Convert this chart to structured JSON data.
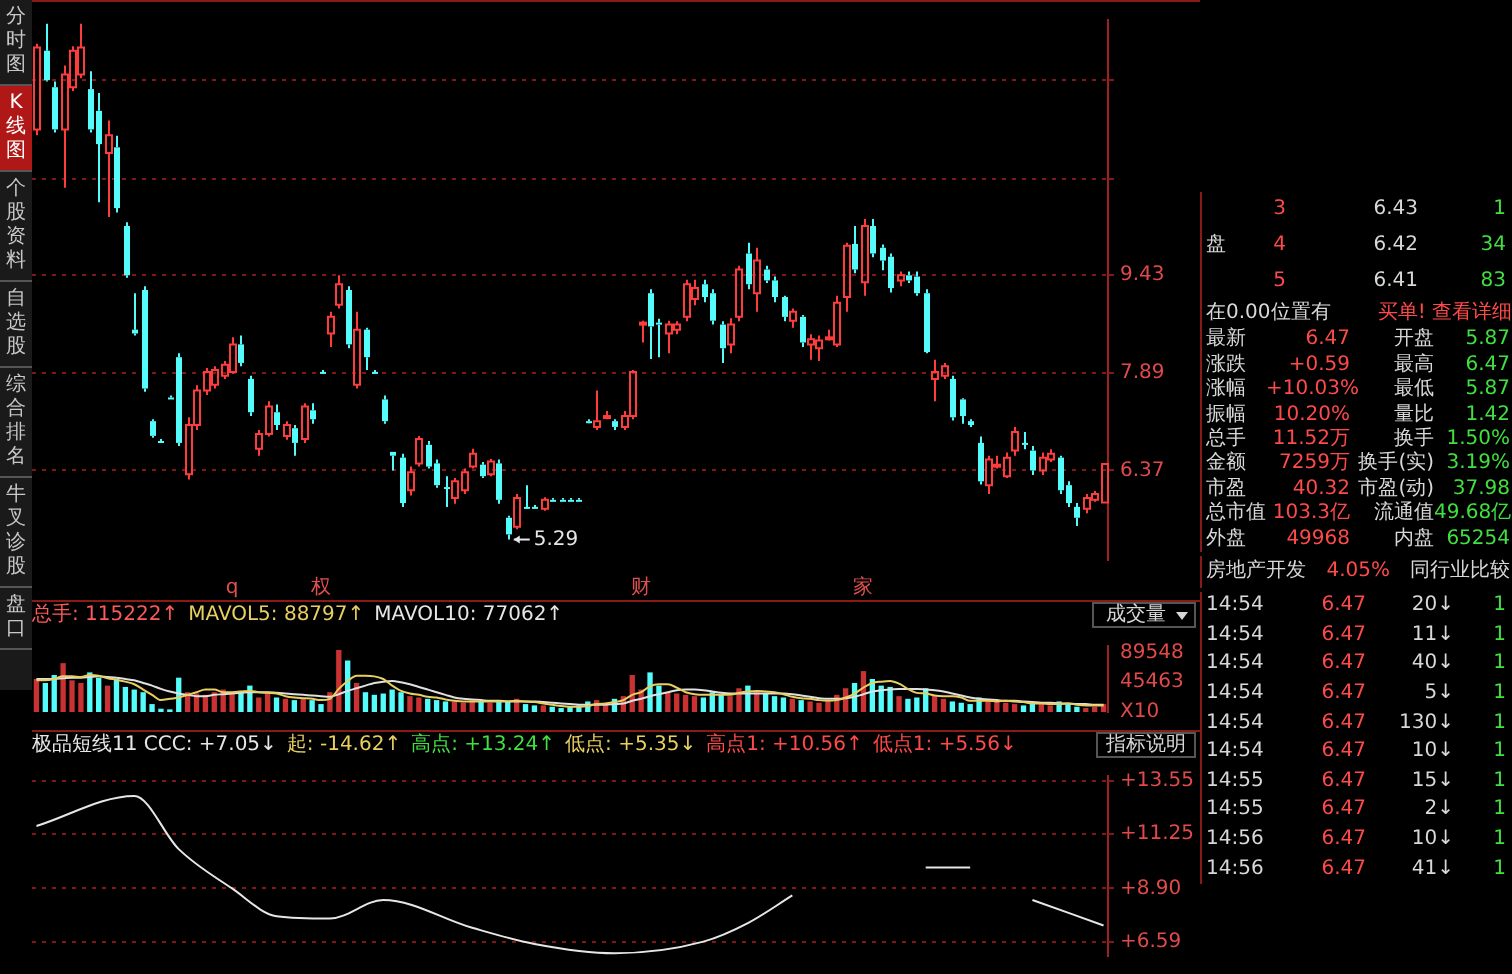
{
  "chart_data": [
    {
      "type": "candlestick",
      "categories": [
        null,
        null,
        null,
        null,
        null,
        null,
        null,
        null,
        null,
        null,
        null,
        null,
        null,
        null,
        null,
        null,
        null,
        null,
        null,
        null,
        null,
        null,
        "q",
        null,
        null,
        null,
        null,
        null,
        null,
        null,
        null,
        null,
        "权",
        null,
        null,
        null,
        null,
        null,
        null,
        null,
        null,
        null,
        null,
        null,
        null,
        null,
        null,
        null,
        null,
        null,
        null,
        null,
        null,
        null,
        null,
        null,
        null,
        null,
        null,
        null,
        null,
        null,
        null,
        null,
        null,
        null,
        null,
        null,
        "财",
        null,
        null,
        null,
        null,
        null,
        null,
        null,
        null,
        null,
        null,
        null,
        null,
        null,
        null,
        null,
        null,
        null,
        null,
        null,
        null,
        null,
        null,
        null,
        null,
        "家",
        null,
        null,
        null,
        null,
        null,
        null,
        null,
        null,
        null,
        null,
        null,
        null,
        null,
        null,
        null,
        null,
        null,
        null,
        null,
        null,
        null,
        null,
        null,
        null,
        null,
        null,
        null
      ],
      "ohlc": [
        [
          11.7,
          13.04,
          11.61,
          12.98
        ],
        [
          12.93,
          13.35,
          12.45,
          12.47
        ],
        [
          12.36,
          12.45,
          11.65,
          11.7
        ],
        [
          11.7,
          12.7,
          10.79,
          12.56
        ],
        [
          12.36,
          13.0,
          12.3,
          12.93
        ],
        [
          12.56,
          13.35,
          12.5,
          12.98
        ],
        [
          12.33,
          12.61,
          11.65,
          11.7
        ],
        [
          11.99,
          12.27,
          10.56,
          11.47
        ],
        [
          11.33,
          11.84,
          10.33,
          11.61
        ],
        [
          11.42,
          11.6,
          10.4,
          10.47
        ],
        [
          10.19,
          10.25,
          9.38,
          9.42
        ],
        [
          8.57,
          9.14,
          8.48,
          8.51
        ],
        [
          9.19,
          9.25,
          7.6,
          7.65
        ],
        [
          7.14,
          7.17,
          6.88,
          6.91
        ],
        [
          6.83,
          6.86,
          6.8,
          6.83
        ],
        [
          7.51,
          7.54,
          7.48,
          7.51
        ],
        [
          8.14,
          8.2,
          6.75,
          6.8
        ],
        [
          6.31,
          7.2,
          6.23,
          7.08
        ],
        [
          7.08,
          7.7,
          7.0,
          7.62
        ],
        [
          7.62,
          7.97,
          7.55,
          7.91
        ],
        [
          7.71,
          8.0,
          7.65,
          7.94
        ],
        [
          7.85,
          8.08,
          7.8,
          8.02
        ],
        [
          7.91,
          8.45,
          7.88,
          8.34
        ],
        [
          8.34,
          8.48,
          8.0,
          8.05
        ],
        [
          7.8,
          7.85,
          7.22,
          7.28
        ],
        [
          6.71,
          7.0,
          6.6,
          6.94
        ],
        [
          6.94,
          7.45,
          6.9,
          7.37
        ],
        [
          7.28,
          7.4,
          7.0,
          7.08
        ],
        [
          6.91,
          7.14,
          6.85,
          7.08
        ],
        [
          7.03,
          7.08,
          6.6,
          6.8
        ],
        [
          6.86,
          7.42,
          6.8,
          7.37
        ],
        [
          7.31,
          7.42,
          7.1,
          7.17
        ],
        [
          7.91,
          7.94,
          7.88,
          7.91
        ],
        [
          8.51,
          8.85,
          8.3,
          8.77
        ],
        [
          8.96,
          9.42,
          8.9,
          9.28
        ],
        [
          9.19,
          9.25,
          8.28,
          8.34
        ],
        [
          7.71,
          8.85,
          7.65,
          8.57
        ],
        [
          8.57,
          8.6,
          7.94,
          8.14
        ],
        [
          7.91,
          7.94,
          7.88,
          7.91
        ],
        [
          7.48,
          7.54,
          7.1,
          7.14
        ],
        [
          6.66,
          6.66,
          6.37,
          6.6
        ],
        [
          6.57,
          6.63,
          5.8,
          5.86
        ],
        [
          6.06,
          6.43,
          5.98,
          6.34
        ],
        [
          6.48,
          6.91,
          6.43,
          6.86
        ],
        [
          6.77,
          6.83,
          6.4,
          6.43
        ],
        [
          6.48,
          6.54,
          6.1,
          6.14
        ],
        [
          6.11,
          6.28,
          5.8,
          6.11
        ],
        [
          5.94,
          6.25,
          5.85,
          6.2
        ],
        [
          6.06,
          6.4,
          6.0,
          6.34
        ],
        [
          6.43,
          6.71,
          6.4,
          6.63
        ],
        [
          6.46,
          6.5,
          6.25,
          6.28
        ],
        [
          6.31,
          6.55,
          6.28,
          6.51
        ],
        [
          6.48,
          6.54,
          5.85,
          5.91
        ],
        [
          5.63,
          5.66,
          5.29,
          5.37
        ],
        [
          5.49,
          6.0,
          5.45,
          5.94
        ],
        [
          5.8,
          6.14,
          5.78,
          5.8
        ],
        [
          5.8,
          5.83,
          5.77,
          5.8
        ],
        [
          5.77,
          5.95,
          5.74,
          5.91
        ],
        [
          5.91,
          5.94,
          5.88,
          5.91
        ],
        [
          5.91,
          5.94,
          5.88,
          5.91
        ],
        [
          5.91,
          5.94,
          5.88,
          5.91
        ],
        [
          5.91,
          5.94,
          5.88,
          5.91
        ],
        [
          7.14,
          7.17,
          7.11,
          7.14
        ],
        [
          7.05,
          7.62,
          7.0,
          7.14
        ],
        [
          7.2,
          7.3,
          7.17,
          7.22
        ],
        [
          7.14,
          7.17,
          7.0,
          7.05
        ],
        [
          7.05,
          7.3,
          7.0,
          7.22
        ],
        [
          7.22,
          7.94,
          7.17,
          7.91
        ],
        [
          8.65,
          8.71,
          8.37,
          8.68
        ],
        [
          9.14,
          9.2,
          8.11,
          8.62
        ],
        [
          8.68,
          8.74,
          8.14,
          8.68
        ],
        [
          8.51,
          8.71,
          8.2,
          8.65
        ],
        [
          8.57,
          8.7,
          8.5,
          8.65
        ],
        [
          8.77,
          9.35,
          8.7,
          9.28
        ],
        [
          9.05,
          9.35,
          8.95,
          9.22
        ],
        [
          9.28,
          9.35,
          9.0,
          9.08
        ],
        [
          9.14,
          9.2,
          8.65,
          8.71
        ],
        [
          8.65,
          8.7,
          8.05,
          8.28
        ],
        [
          8.34,
          8.75,
          8.2,
          8.65
        ],
        [
          8.77,
          9.57,
          8.7,
          9.51
        ],
        [
          9.76,
          9.93,
          9.2,
          9.28
        ],
        [
          9.14,
          9.85,
          8.85,
          9.65
        ],
        [
          9.51,
          9.57,
          9.3,
          9.34
        ],
        [
          9.34,
          9.4,
          9.0,
          9.08
        ],
        [
          9.08,
          9.1,
          8.7,
          8.77
        ],
        [
          8.71,
          8.9,
          8.6,
          8.85
        ],
        [
          8.77,
          8.8,
          8.3,
          8.37
        ],
        [
          8.34,
          8.5,
          8.1,
          8.42
        ],
        [
          8.28,
          8.48,
          8.08,
          8.4
        ],
        [
          8.42,
          8.57,
          8.4,
          8.45
        ],
        [
          8.34,
          9.1,
          8.3,
          8.99
        ],
        [
          9.08,
          9.93,
          8.85,
          9.88
        ],
        [
          9.91,
          10.19,
          9.45,
          9.51
        ],
        [
          9.31,
          10.3,
          9.1,
          10.19
        ],
        [
          10.19,
          10.3,
          9.7,
          9.76
        ],
        [
          9.85,
          9.9,
          9.5,
          9.65
        ],
        [
          9.71,
          9.76,
          9.15,
          9.22
        ],
        [
          9.34,
          9.48,
          9.25,
          9.42
        ],
        [
          9.42,
          9.48,
          9.3,
          9.34
        ],
        [
          9.4,
          9.48,
          9.1,
          9.14
        ],
        [
          9.14,
          9.2,
          8.2,
          8.22
        ],
        [
          7.8,
          8.1,
          7.45,
          7.91
        ],
        [
          7.85,
          8.05,
          7.8,
          8.0
        ],
        [
          7.8,
          7.85,
          7.15,
          7.2
        ],
        [
          7.48,
          7.5,
          7.1,
          7.22
        ],
        [
          7.14,
          7.17,
          7.05,
          7.08
        ],
        [
          6.8,
          6.9,
          6.15,
          6.2
        ],
        [
          6.14,
          6.6,
          6.0,
          6.54
        ],
        [
          6.45,
          6.6,
          6.4,
          6.46
        ],
        [
          6.28,
          6.65,
          6.25,
          6.57
        ],
        [
          6.68,
          7.05,
          6.6,
          6.97
        ],
        [
          6.8,
          6.97,
          6.7,
          6.8
        ],
        [
          6.68,
          6.75,
          6.3,
          6.37
        ],
        [
          6.37,
          6.65,
          6.3,
          6.57
        ],
        [
          6.54,
          6.7,
          6.5,
          6.63
        ],
        [
          6.57,
          6.6,
          6.0,
          6.06
        ],
        [
          6.14,
          6.2,
          5.8,
          5.86
        ],
        [
          5.8,
          5.86,
          5.5,
          5.63
        ],
        [
          5.77,
          6.0,
          5.7,
          5.94
        ],
        [
          5.91,
          6.05,
          5.88,
          6.0
        ],
        [
          5.87,
          6.47,
          5.87,
          6.47
        ]
      ],
      "colors": [
        "#ff3c3c",
        "#54fcfc",
        "#54fcfc",
        "#ff3c3c",
        "#ff3c3c",
        "#ff3c3c",
        "#54fcfc",
        "#54fcfc",
        "#ff3c3c",
        "#54fcfc",
        "#54fcfc",
        "#54fcfc",
        "#54fcfc",
        "#54fcfc",
        "#54fcfc",
        "#54fcfc",
        "#54fcfc",
        "#ff3c3c",
        "#ff3c3c",
        "#ff3c3c",
        "#ff3c3c",
        "#ff3c3c",
        "#ff3c3c",
        "#54fcfc",
        "#54fcfc",
        "#ff3c3c",
        "#ff3c3c",
        "#54fcfc",
        "#ff3c3c",
        "#54fcfc",
        "#ff3c3c",
        "#54fcfc",
        "#54fcfc",
        "#ff3c3c",
        "#ff3c3c",
        "#54fcfc",
        "#ff3c3c",
        "#54fcfc",
        "#54fcfc",
        "#54fcfc",
        "#54fcfc",
        "#54fcfc",
        "#ff3c3c",
        "#ff3c3c",
        "#54fcfc",
        "#54fcfc",
        "#54fcfc",
        "#ff3c3c",
        "#ff3c3c",
        "#ff3c3c",
        "#54fcfc",
        "#ff3c3c",
        "#54fcfc",
        "#54fcfc",
        "#ff3c3c",
        "#54fcfc",
        "#54fcfc",
        "#ff3c3c",
        "#54fcfc",
        "#54fcfc",
        "#54fcfc",
        "#54fcfc",
        "#54fcfc",
        "#ff3c3c",
        "#ff3c3c",
        "#54fcfc",
        "#ff3c3c",
        "#ff3c3c",
        "#ff3c3c",
        "#54fcfc",
        "#54fcfc",
        "#ff3c3c",
        "#ff3c3c",
        "#ff3c3c",
        "#ff3c3c",
        "#54fcfc",
        "#54fcfc",
        "#54fcfc",
        "#ff3c3c",
        "#ff3c3c",
        "#54fcfc",
        "#ff3c3c",
        "#54fcfc",
        "#54fcfc",
        "#54fcfc",
        "#ff3c3c",
        "#54fcfc",
        "#ff3c3c",
        "#ff3c3c",
        "#ff3c3c",
        "#ff3c3c",
        "#ff3c3c",
        "#54fcfc",
        "#ff3c3c",
        "#54fcfc",
        "#54fcfc",
        "#54fcfc",
        "#ff3c3c",
        "#54fcfc",
        "#54fcfc",
        "#54fcfc",
        "#ff3c3c",
        "#ff3c3c",
        "#54fcfc",
        "#54fcfc",
        "#54fcfc",
        "#54fcfc",
        "#ff3c3c",
        "#ff3c3c",
        "#ff3c3c",
        "#ff3c3c",
        "#54fcfc",
        "#54fcfc",
        "#ff3c3c",
        "#ff3c3c",
        "#54fcfc",
        "#54fcfc",
        "#54fcfc",
        "#ff3c3c",
        "#ff3c3c",
        "#ff3c3c"
      ],
      "ylim": [
        4.97,
        13.41
      ],
      "yticks": [
        6.37,
        7.89,
        9.43,
        {
          "value": 10.93,
          "label": null
        },
        {
          "value": 12.47,
          "label": null
        }
      ],
      "grid": "y",
      "annotations": [
        "5.29"
      ]
    },
    {
      "type": "bar",
      "categories": [
        null,
        null,
        null,
        null,
        null,
        null,
        null,
        null,
        null,
        null,
        null,
        null,
        null,
        null,
        null,
        null,
        null,
        null,
        null,
        null,
        null,
        null,
        null,
        null,
        null,
        null,
        null,
        null,
        null,
        null,
        null,
        null,
        null,
        null,
        null,
        null,
        null,
        null,
        null,
        null,
        null,
        null,
        null,
        null,
        null,
        null,
        null,
        null,
        null,
        null,
        null,
        null,
        null,
        null,
        null,
        null,
        null,
        null,
        null,
        null,
        null,
        null,
        null,
        null,
        null,
        null,
        null,
        null,
        null,
        null,
        null,
        null,
        null,
        null,
        null,
        null,
        null,
        null,
        null,
        null,
        null,
        null,
        null,
        null,
        null,
        null,
        null,
        null,
        null,
        null,
        null,
        null,
        null,
        null,
        null,
        null,
        null,
        null,
        null,
        null,
        null,
        null,
        null,
        null,
        null,
        null,
        null,
        null,
        null,
        null,
        null,
        null,
        null,
        null,
        null,
        null,
        null,
        null,
        null,
        null,
        null
      ],
      "values": [
        50000,
        44000,
        56000,
        74000,
        48000,
        44000,
        60000,
        52000,
        40000,
        50000,
        38000,
        34000,
        30000,
        12000,
        5000,
        4000,
        52000,
        30000,
        28000,
        26000,
        30000,
        34000,
        28000,
        32000,
        40000,
        22000,
        30000,
        22000,
        20000,
        18000,
        20000,
        18000,
        12000,
        30000,
        94000,
        78000,
        44000,
        30000,
        26000,
        28000,
        34000,
        30000,
        24000,
        22000,
        20000,
        18000,
        16000,
        16000,
        14000,
        18000,
        16000,
        14000,
        18000,
        16000,
        20000,
        12000,
        10000,
        10000,
        8000,
        6000,
        8000,
        10000,
        16000,
        18000,
        14000,
        20000,
        24000,
        56000,
        34000,
        60000,
        40000,
        30000,
        28000,
        26000,
        24000,
        22000,
        30000,
        26000,
        24000,
        36000,
        40000,
        30000,
        28000,
        24000,
        22000,
        20000,
        18000,
        16000,
        14000,
        16000,
        26000,
        36000,
        44000,
        62000,
        50000,
        40000,
        38000,
        24000,
        20000,
        22000,
        36000,
        24000,
        20000,
        16000,
        14000,
        12000,
        22000,
        20000,
        16000,
        14000,
        12000,
        10000,
        14000,
        12000,
        10000,
        16000,
        12000,
        8000,
        6000,
        8000,
        12000
      ],
      "colors": [
        "#c83232",
        "#54fcfc",
        "#54fcfc",
        "#c83232",
        "#c83232",
        "#c83232",
        "#54fcfc",
        "#54fcfc",
        "#c83232",
        "#54fcfc",
        "#54fcfc",
        "#54fcfc",
        "#54fcfc",
        "#54fcfc",
        "#54fcfc",
        "#54fcfc",
        "#54fcfc",
        "#c83232",
        "#c83232",
        "#c83232",
        "#c83232",
        "#c83232",
        "#c83232",
        "#54fcfc",
        "#54fcfc",
        "#c83232",
        "#c83232",
        "#54fcfc",
        "#c83232",
        "#54fcfc",
        "#c83232",
        "#54fcfc",
        "#54fcfc",
        "#c83232",
        "#c83232",
        "#54fcfc",
        "#c83232",
        "#54fcfc",
        "#54fcfc",
        "#54fcfc",
        "#54fcfc",
        "#54fcfc",
        "#c83232",
        "#c83232",
        "#54fcfc",
        "#54fcfc",
        "#54fcfc",
        "#c83232",
        "#c83232",
        "#c83232",
        "#54fcfc",
        "#c83232",
        "#54fcfc",
        "#54fcfc",
        "#c83232",
        "#54fcfc",
        "#54fcfc",
        "#c83232",
        "#54fcfc",
        "#54fcfc",
        "#54fcfc",
        "#54fcfc",
        "#54fcfc",
        "#c83232",
        "#c83232",
        "#54fcfc",
        "#c83232",
        "#c83232",
        "#c83232",
        "#54fcfc",
        "#54fcfc",
        "#c83232",
        "#c83232",
        "#c83232",
        "#c83232",
        "#54fcfc",
        "#54fcfc",
        "#54fcfc",
        "#c83232",
        "#c83232",
        "#54fcfc",
        "#c83232",
        "#54fcfc",
        "#54fcfc",
        "#54fcfc",
        "#c83232",
        "#54fcfc",
        "#c83232",
        "#c83232",
        "#c83232",
        "#c83232",
        "#c83232",
        "#54fcfc",
        "#c83232",
        "#54fcfc",
        "#54fcfc",
        "#54fcfc",
        "#c83232",
        "#54fcfc",
        "#54fcfc",
        "#54fcfc",
        "#c83232",
        "#c83232",
        "#54fcfc",
        "#54fcfc",
        "#54fcfc",
        "#54fcfc",
        "#c83232",
        "#c83232",
        "#c83232",
        "#c83232",
        "#54fcfc",
        "#54fcfc",
        "#c83232",
        "#c83232",
        "#54fcfc",
        "#54fcfc",
        "#54fcfc",
        "#c83232",
        "#c83232",
        "#c83232"
      ],
      "series": [
        {
          "type": "line",
          "color": "#e8d060",
          "values": [
            48000,
            48000,
            50000,
            54000,
            54000,
            53000,
            56000,
            55000,
            51000,
            49000,
            46000,
            42000,
            34000,
            26000,
            18000,
            20000,
            22000,
            26000,
            30000,
            34000,
            34000,
            30000,
            30000,
            31000,
            32000,
            30000,
            29000,
            28000,
            24000,
            22000,
            21000,
            20000,
            18000,
            20000,
            35000,
            47000,
            55000,
            55000,
            54000,
            50000,
            40000,
            32000,
            28000,
            26000,
            23000,
            22000,
            19000,
            17000,
            16000,
            16000,
            16000,
            16000,
            16000,
            16000,
            17000,
            16000,
            15000,
            13000,
            11000,
            9000,
            8000,
            8000,
            9000,
            12000,
            13000,
            15000,
            18000,
            26000,
            30000,
            39000,
            42000,
            42000,
            37000,
            30000,
            27000,
            26000,
            26000,
            26000,
            26000,
            29000,
            31000,
            32000,
            31000,
            30000,
            27000,
            23000,
            21000,
            20000,
            18000,
            17000,
            18000,
            22000,
            28000,
            37000,
            44000,
            46000,
            47000,
            43000,
            35000,
            29000,
            28000,
            25000,
            24000,
            24000,
            22000,
            17000,
            17000,
            17000,
            16000,
            17000,
            16000,
            15000,
            13000,
            13000,
            12000,
            12000,
            13000,
            11000,
            10000,
            10000,
            10000
          ]
        },
        {
          "type": "line",
          "color": "#e0e0e0",
          "values": [
            50000,
            50000,
            50000,
            51000,
            52000,
            52000,
            53000,
            54000,
            53000,
            52000,
            50000,
            48000,
            44000,
            40000,
            35000,
            31000,
            28000,
            26000,
            24000,
            24000,
            26000,
            27000,
            28000,
            29000,
            30000,
            30000,
            30000,
            29000,
            28000,
            27000,
            26000,
            25000,
            24000,
            23000,
            27000,
            32000,
            36000,
            40000,
            44000,
            46000,
            47000,
            45000,
            42000,
            38000,
            34000,
            30000,
            26000,
            22000,
            20000,
            19000,
            18000,
            17000,
            17000,
            16000,
            16000,
            16000,
            16000,
            15000,
            14000,
            13000,
            12000,
            11000,
            11000,
            11000,
            11000,
            12000,
            13000,
            17000,
            20000,
            24000,
            27000,
            30000,
            33000,
            34000,
            34000,
            33000,
            31000,
            29000,
            28000,
            28000,
            28000,
            28000,
            28000,
            28000,
            28000,
            27000,
            25000,
            23000,
            21000,
            20000,
            20000,
            21000,
            23000,
            27000,
            31000,
            33000,
            34000,
            35000,
            35000,
            35000,
            34000,
            33000,
            31000,
            28000,
            25000,
            22000,
            20000,
            19000,
            18000,
            17000,
            17000,
            16000,
            15000,
            14000,
            14000,
            13000,
            13000,
            12000,
            12000,
            11000,
            11000
          ]
        }
      ],
      "ylim": [
        0,
        100000
      ],
      "yticks": [
        {
          "value": 0,
          "label": "X10"
        },
        45463,
        89548
      ],
      "tick_labels": "y",
      "marker": "none",
      "annotations": [
        "总手: 115222↑",
        "MAVOL5: 88797↑",
        "MAVOL10: 77062↑",
        "成交量"
      ]
    },
    {
      "type": "line",
      "categories": [
        null,
        null,
        null,
        null,
        null,
        null,
        null,
        null,
        null,
        null,
        null,
        null,
        null,
        null,
        null,
        null,
        null,
        null,
        null,
        null,
        null,
        null,
        null,
        null,
        null,
        null,
        null,
        null,
        null,
        null,
        null,
        null,
        null,
        null,
        null,
        null,
        null,
        null,
        null,
        null,
        null,
        null,
        null,
        null,
        null,
        null,
        null,
        null,
        null,
        null,
        null,
        null,
        null,
        null,
        null,
        null,
        null,
        null,
        null,
        null,
        null,
        null,
        null,
        null,
        null,
        null,
        null,
        null,
        null,
        null,
        null,
        null,
        null,
        null,
        null,
        null,
        null,
        null,
        null,
        null,
        null,
        null,
        null,
        null,
        null,
        null,
        null,
        null,
        null,
        null,
        null,
        null,
        null,
        null,
        null,
        null,
        null,
        null,
        null,
        null,
        null,
        null,
        null,
        null,
        null,
        null,
        null,
        null,
        null,
        null,
        null,
        null,
        null,
        null,
        null,
        null,
        null,
        null,
        null,
        null,
        null
      ],
      "series": [
        {
          "color": "#e6e6e6",
          "values": [
            11.6,
            null,
            null,
            null,
            null,
            null,
            null,
            null,
            null,
            null,
            null,
            12.9,
            null,
            null,
            null,
            null,
            10.6,
            null,
            null,
            null,
            null,
            null,
            8.9,
            null,
            null,
            null,
            null,
            7.7,
            null,
            null,
            null,
            null,
            null,
            7.6,
            null,
            null,
            null,
            null,
            null,
            8.4,
            null,
            null,
            null,
            null,
            null,
            null,
            null,
            null,
            null,
            7.2,
            null,
            null,
            null,
            null,
            null,
            null,
            6.5,
            null,
            null,
            null,
            null,
            null,
            null,
            null,
            null,
            6.1,
            null,
            null,
            null,
            null,
            null,
            null,
            null,
            null,
            null,
            6.6,
            null,
            null,
            null,
            null,
            7.4,
            null,
            null,
            null,
            null,
            8.6,
            null,
            null,
            null,
            null,
            null,
            null,
            null,
            null,
            null,
            null,
            null,
            null,
            null,
            null,
            null,
            null,
            null,
            null,
            null,
            null,
            null,
            null,
            null,
            null,
            null,
            null,
            null,
            null,
            null,
            null,
            null,
            null,
            null,
            null,
            null
          ]
        },
        {
          "color": "#e6e6e6",
          "values": [
            null,
            null,
            null,
            null,
            null,
            null,
            null,
            null,
            null,
            null,
            null,
            null,
            null,
            null,
            null,
            null,
            null,
            null,
            null,
            null,
            null,
            null,
            null,
            null,
            null,
            null,
            null,
            null,
            null,
            null,
            null,
            null,
            null,
            null,
            null,
            null,
            null,
            null,
            null,
            null,
            null,
            null,
            null,
            null,
            null,
            null,
            null,
            null,
            null,
            null,
            null,
            null,
            null,
            null,
            null,
            null,
            null,
            null,
            null,
            null,
            null,
            null,
            null,
            null,
            null,
            null,
            null,
            null,
            null,
            null,
            null,
            null,
            null,
            null,
            null,
            null,
            null,
            null,
            null,
            null,
            null,
            null,
            null,
            null,
            null,
            null,
            null,
            null,
            null,
            null,
            null,
            null,
            null,
            null,
            null,
            null,
            null,
            null,
            null,
            null,
            9.8,
            null,
            null,
            null,
            null,
            9.8,
            null,
            null,
            null,
            null,
            null,
            null,
            null,
            null,
            null,
            null,
            null,
            null,
            null,
            null,
            null
          ]
        },
        {
          "color": "#e6e6e6",
          "values": [
            null,
            null,
            null,
            null,
            null,
            null,
            null,
            null,
            null,
            null,
            null,
            null,
            null,
            null,
            null,
            null,
            null,
            null,
            null,
            null,
            null,
            null,
            null,
            null,
            null,
            null,
            null,
            null,
            null,
            null,
            null,
            null,
            null,
            null,
            null,
            null,
            null,
            null,
            null,
            null,
            null,
            null,
            null,
            null,
            null,
            null,
            null,
            null,
            null,
            null,
            null,
            null,
            null,
            null,
            null,
            null,
            null,
            null,
            null,
            null,
            null,
            null,
            null,
            null,
            null,
            null,
            null,
            null,
            null,
            null,
            null,
            null,
            null,
            null,
            null,
            null,
            null,
            null,
            null,
            null,
            null,
            null,
            null,
            null,
            null,
            null,
            null,
            null,
            null,
            null,
            null,
            null,
            null,
            null,
            null,
            null,
            null,
            null,
            null,
            null,
            null,
            null,
            null,
            null,
            null,
            null,
            null,
            null,
            null,
            null,
            null,
            null,
            8.4,
            null,
            null,
            null,
            null,
            null,
            null,
            null,
            7.3
          ]
        }
      ],
      "ylim": [
        5.98,
        13.76
      ],
      "yticks": [
        {
          "value": 6.59,
          "label": "+6.59"
        },
        {
          "value": 8.9,
          "label": "+8.90"
        },
        {
          "value": 11.25,
          "label": "+11.25"
        },
        {
          "value": 13.55,
          "label": "+13.55"
        }
      ],
      "grid": "y",
      "tick_labels": "y",
      "marker": "none",
      "annotations": [
        "极品短线11 CCC: +7.05↓",
        "起: -14.62↑",
        "高点: +13.24↑",
        "低点: +5.35↓",
        "高点1: +10.56↑",
        "低点1: +5.56↓",
        "指标说明"
      ]
    },
    {
      "type": "other",
      "annotations": [
        "盘",
        "3",
        "6.43",
        "1",
        "4",
        "6.42",
        "34",
        "5",
        "6.41",
        "83"
      ]
    },
    {
      "type": "other",
      "annotations": [
        "在0.00位置有",
        "买单! 查看详细"
      ]
    },
    {
      "type": "other",
      "annotations": [
        "最新",
        "6.47",
        "开盘",
        "5.87",
        "涨跌",
        "+0.59",
        "最高",
        "6.47",
        "涨幅",
        "+10.03%",
        "最低",
        "5.87",
        "振幅",
        "10.20%",
        "量比",
        "1.42",
        "总手",
        "11.52万",
        "换手",
        "1.50%",
        "金额",
        "7259万",
        "换手(实)",
        "3.19%",
        "市盈",
        "40.32",
        "市盈(动)",
        "37.98",
        "总市值",
        "103.3亿",
        "流通值",
        "49.68亿",
        "外盘",
        "49968",
        "内盘",
        "65254"
      ]
    },
    {
      "type": "other",
      "annotations": [
        "房地产开发",
        "4.05%",
        "同行业比较"
      ]
    },
    {
      "type": "other",
      "annotations": [
        "14:54",
        "6.47",
        "20↓",
        "1",
        "14:54",
        "6.47",
        "11↓",
        "1",
        "14:54",
        "6.47",
        "40↓",
        "1",
        "14:54",
        "6.47",
        "5↓",
        "1",
        "14:54",
        "6.47",
        "130↓",
        "1",
        "14:54",
        "6.47",
        "10↓",
        "1",
        "14:55",
        "6.47",
        "15↓",
        "1",
        "14:55",
        "6.47",
        "2↓",
        "1",
        "14:56",
        "6.47",
        "10↓",
        "1",
        "14:56",
        "6.47",
        "41↓",
        "1"
      ]
    },
    {
      "type": "other",
      "annotations": [
        "分时图",
        "K线图",
        "个股资料",
        "自选股",
        "综合排名",
        "牛叉诊股",
        "盘口"
      ]
    }
  ]
}
